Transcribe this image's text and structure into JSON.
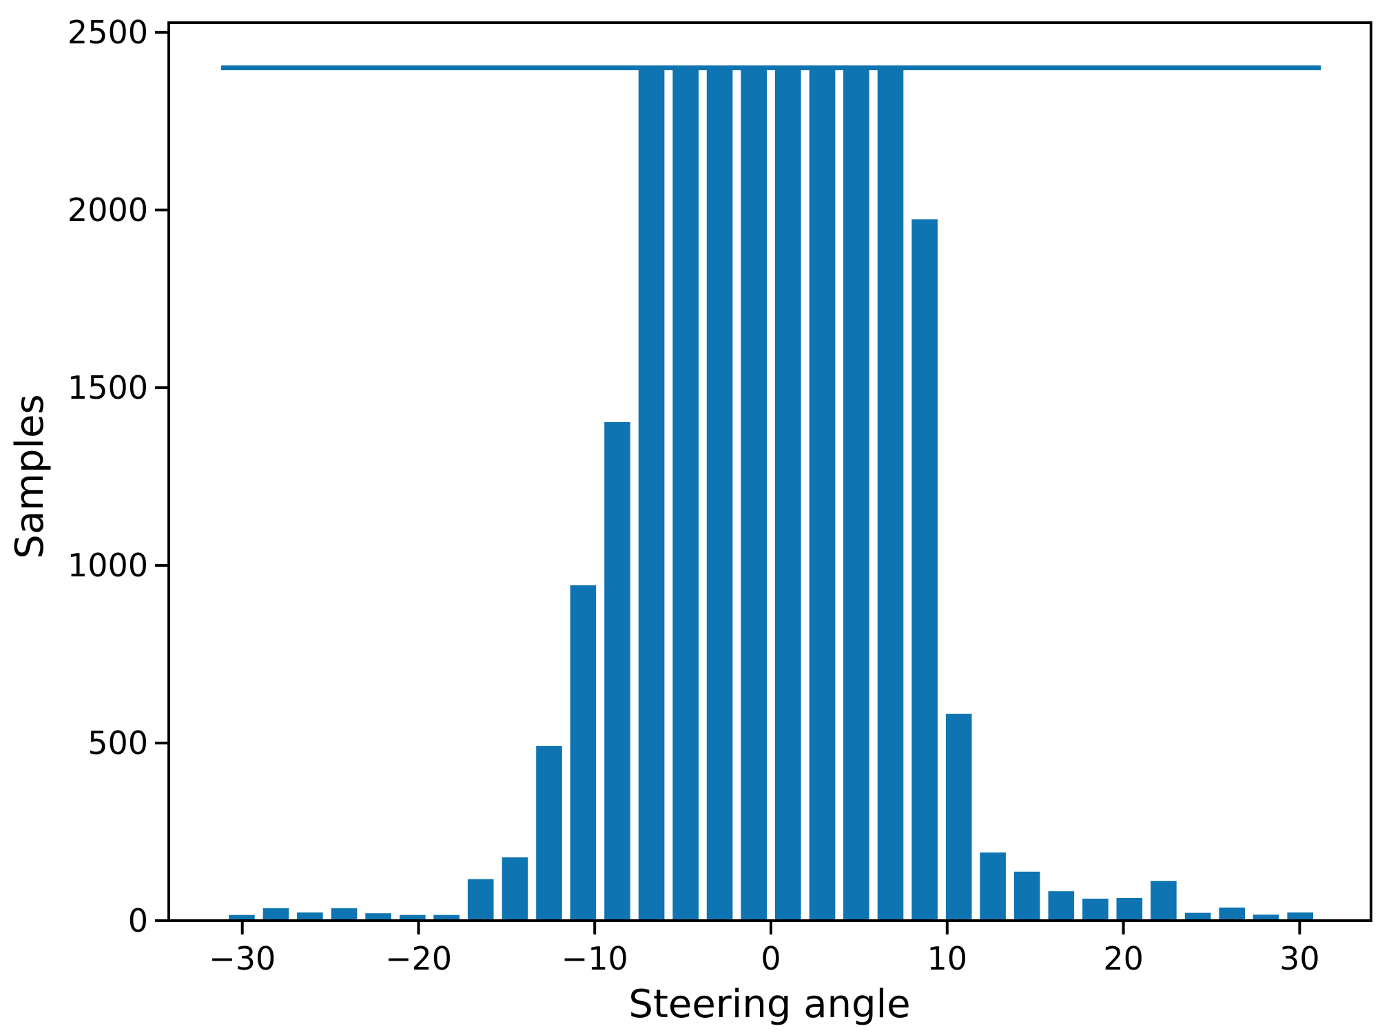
{
  "figure": {
    "background": "#ffffff"
  },
  "chart_data": {
    "type": "bar",
    "title": "",
    "xlabel": "Steering angle",
    "ylabel": "Samples",
    "grid": false,
    "legend": null,
    "bar_color": "#0e74b2",
    "line_color": "#0e74b2",
    "axis_color": "#000000",
    "xlim": [
      -34.17,
      34.05
    ],
    "ylim": [
      0,
      2527
    ],
    "bar_width": 1.47,
    "x_ticks": [
      {
        "value": -30,
        "label": "−30"
      },
      {
        "value": -20,
        "label": "−20"
      },
      {
        "value": -10,
        "label": "−10"
      },
      {
        "value": 0,
        "label": "0"
      },
      {
        "value": 10,
        "label": "10"
      },
      {
        "value": 20,
        "label": "20"
      },
      {
        "value": 30,
        "label": "30"
      }
    ],
    "y_ticks": [
      {
        "value": 0,
        "label": "0"
      },
      {
        "value": 500,
        "label": "500"
      },
      {
        "value": 1000,
        "label": "1000"
      },
      {
        "value": 1500,
        "label": "1500"
      },
      {
        "value": 2000,
        "label": "2000"
      },
      {
        "value": 2500,
        "label": "2500"
      }
    ],
    "x": [
      -30.03,
      -28.09,
      -26.16,
      -24.22,
      -22.28,
      -20.34,
      -18.41,
      -16.47,
      -14.53,
      -12.59,
      -10.66,
      -8.72,
      -6.78,
      -4.84,
      -2.91,
      -0.97,
      0.97,
      2.91,
      4.84,
      6.78,
      8.72,
      10.66,
      12.59,
      14.53,
      16.47,
      18.41,
      20.34,
      22.28,
      24.22,
      26.16,
      28.09,
      30.03
    ],
    "values": [
      16,
      35,
      23,
      35,
      21,
      16,
      16,
      117,
      178,
      492,
      944,
      1403,
      2400,
      2400,
      2400,
      2400,
      2400,
      2400,
      2400,
      2400,
      1974,
      582,
      192,
      138,
      83,
      62,
      64,
      112,
      22,
      37,
      17,
      23
    ],
    "cap_line": {
      "value": 2400,
      "x_start": -31.2,
      "x_end": 31.2
    }
  }
}
